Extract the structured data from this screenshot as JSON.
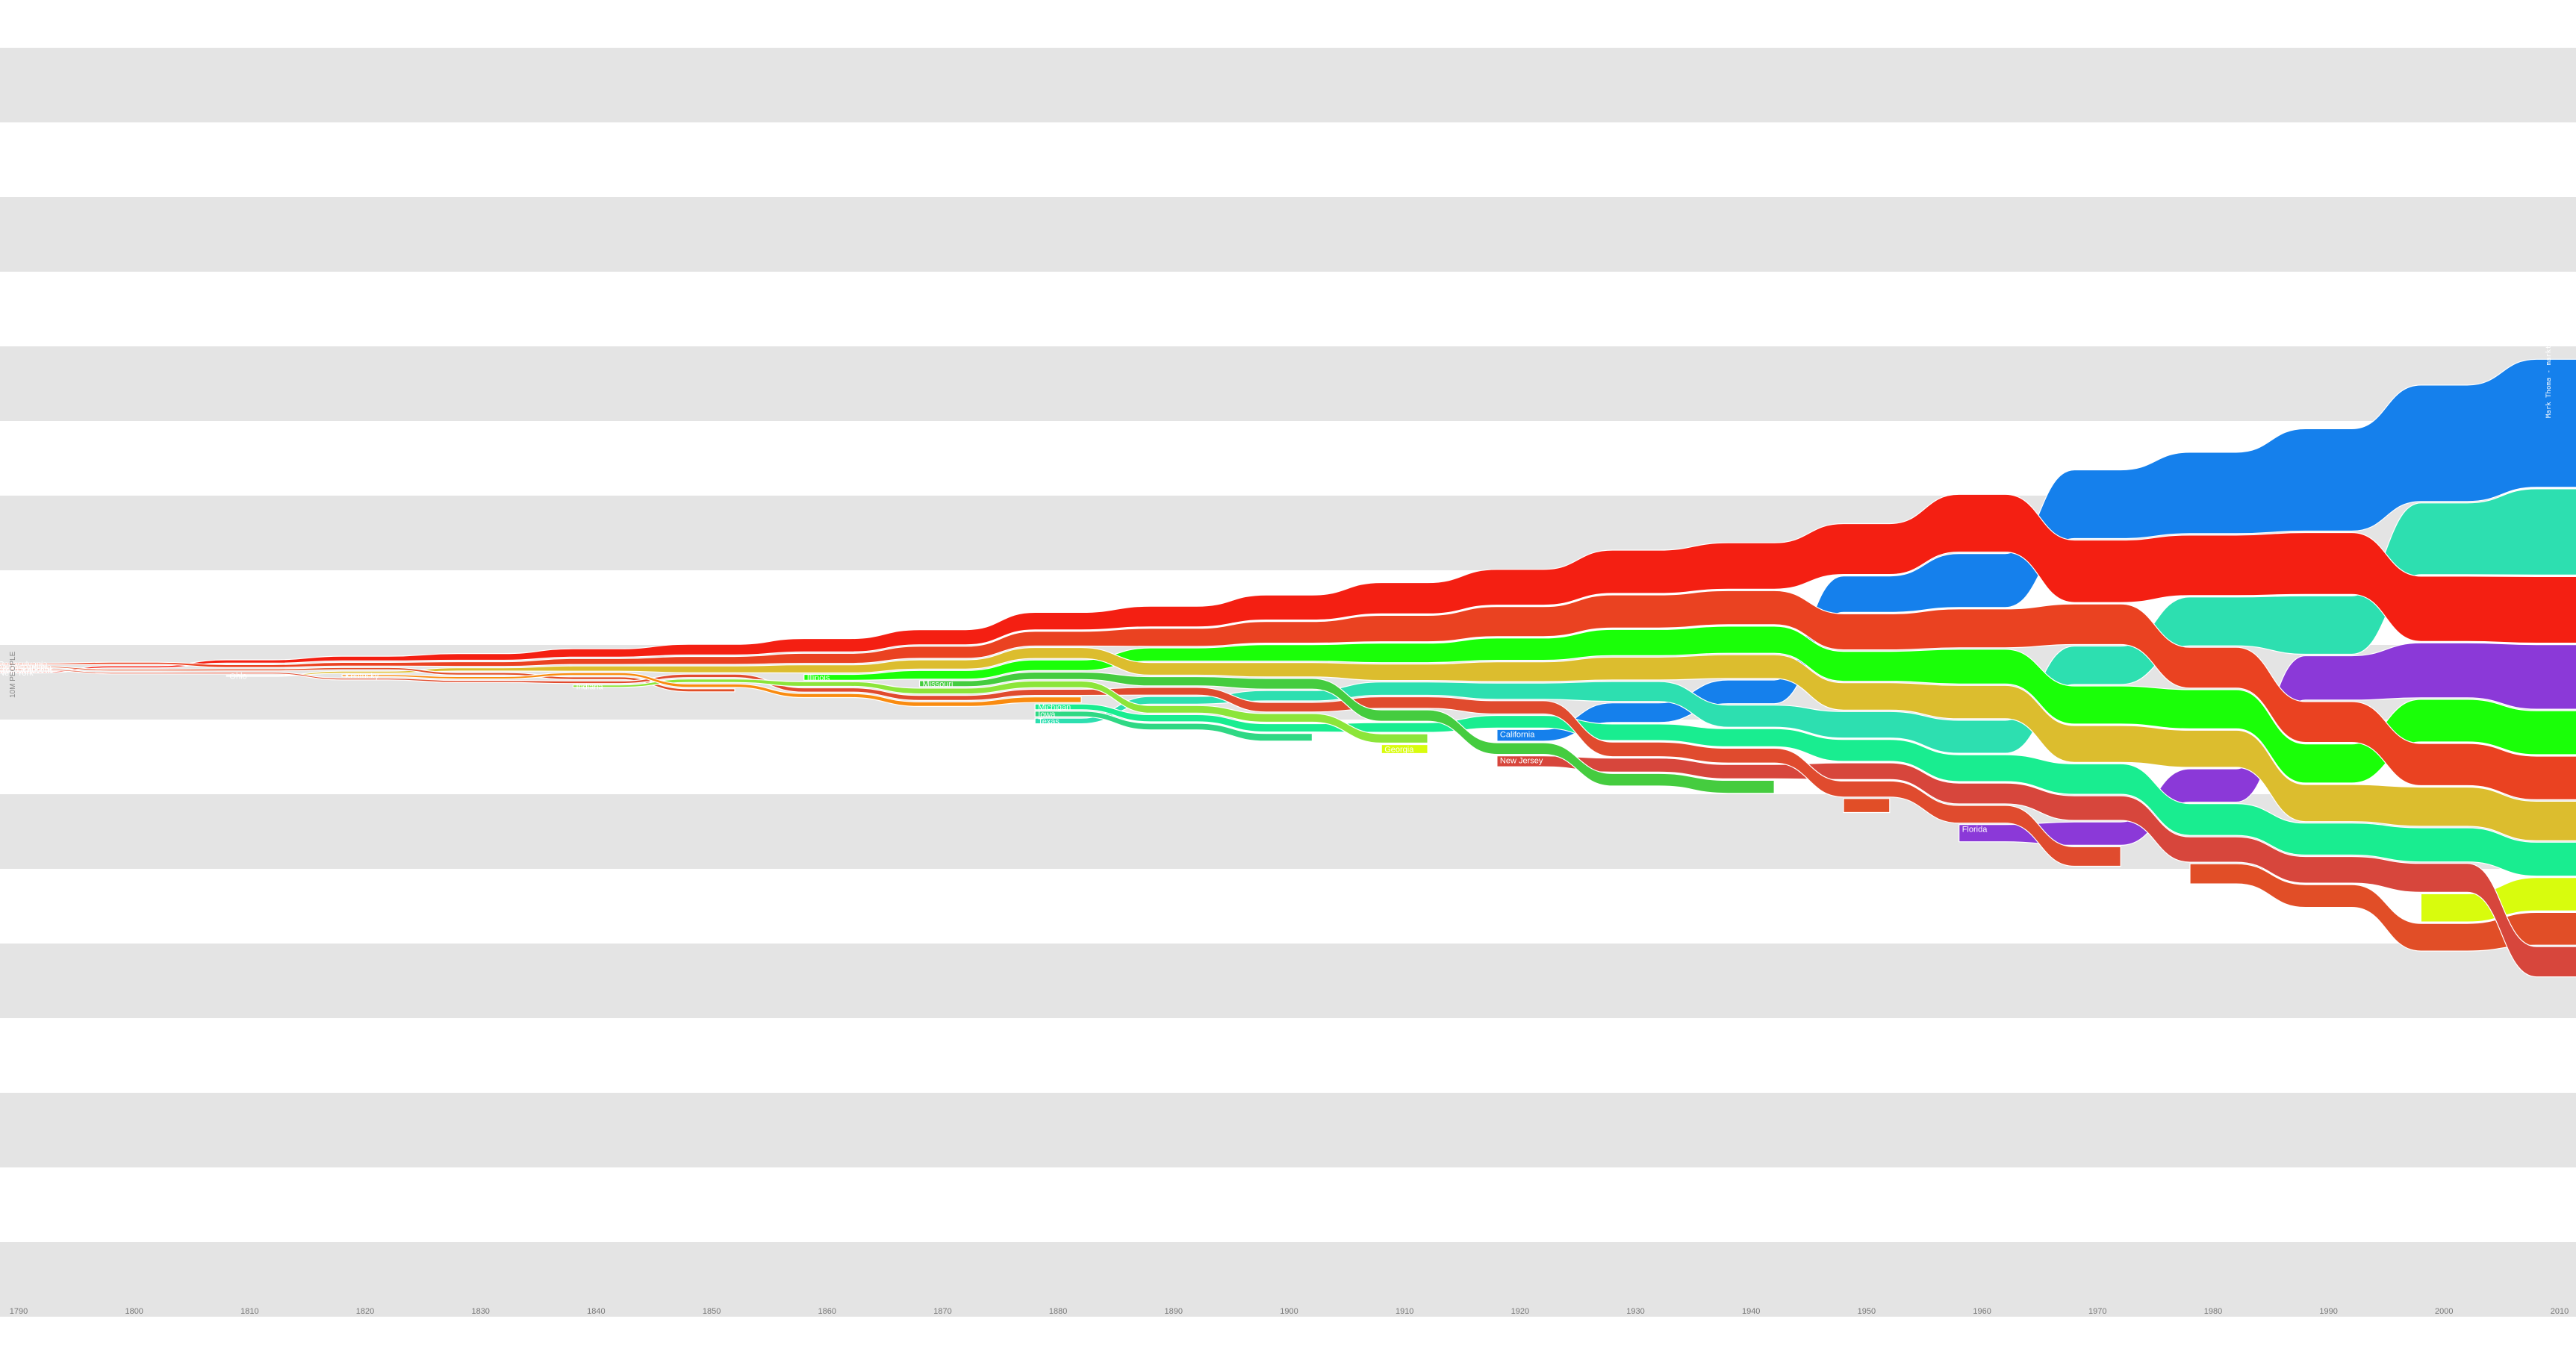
{
  "chart_data": {
    "type": "area",
    "title": "",
    "xlabel": "",
    "ylabel": "",
    "unit_label": "10M PEOPLE",
    "credit": "Mark Thoma - markthoma.com - @thoma",
    "x": [
      1790,
      1800,
      1810,
      1820,
      1830,
      1840,
      1850,
      1860,
      1870,
      1880,
      1890,
      1900,
      1910,
      1920,
      1930,
      1940,
      1950,
      1960,
      1970,
      1980,
      1990,
      2000,
      2010
    ],
    "x_ticks": [
      "1790",
      "1800",
      "1810",
      "1820",
      "1830",
      "1840",
      "1850",
      "1860",
      "1870",
      "1880",
      "1890",
      "1900",
      "1910",
      "1920",
      "1930",
      "1940",
      "1950",
      "1960",
      "1970",
      "1980",
      "1990",
      "2000",
      "2010"
    ],
    "grid": "alternating horizontal bands",
    "ranking": "states stacked by population rank each decade, largest on top",
    "series": [
      {
        "name": "California",
        "color": "#1580ec",
        "values": [
          null,
          null,
          null,
          null,
          null,
          null,
          null,
          null,
          null,
          null,
          null,
          null,
          null,
          3.4,
          5.7,
          6.9,
          10.6,
          15.7,
          20.0,
          23.7,
          29.8,
          33.9,
          37.3
        ]
      },
      {
        "name": "Texas",
        "color": "#2ddfb0",
        "values": [
          null,
          null,
          null,
          null,
          null,
          null,
          null,
          null,
          null,
          1.6,
          2.2,
          3.0,
          3.9,
          4.7,
          5.8,
          6.4,
          7.7,
          9.6,
          11.2,
          14.2,
          17.0,
          20.9,
          25.1
        ]
      },
      {
        "name": "New York",
        "color": "#f41f12",
        "values": [
          0.34,
          0.59,
          0.96,
          1.37,
          1.92,
          2.43,
          3.1,
          3.88,
          4.38,
          5.08,
          6.0,
          7.27,
          9.11,
          10.4,
          12.6,
          13.5,
          14.8,
          16.8,
          18.2,
          17.6,
          18.0,
          19.0,
          19.4
        ]
      },
      {
        "name": "Florida",
        "color": "#8b39d8",
        "values": [
          null,
          null,
          null,
          null,
          null,
          null,
          null,
          null,
          null,
          null,
          null,
          null,
          null,
          null,
          null,
          null,
          null,
          5.0,
          6.8,
          9.7,
          12.9,
          16.0,
          18.8
        ]
      },
      {
        "name": "Illinois",
        "color": "#1aff08",
        "values": [
          null,
          null,
          null,
          null,
          null,
          null,
          null,
          1.71,
          2.54,
          3.08,
          3.83,
          4.82,
          5.64,
          6.49,
          7.63,
          7.9,
          8.71,
          10.1,
          11.1,
          11.4,
          11.4,
          12.4,
          12.8
        ]
      },
      {
        "name": "Pennsylvania",
        "color": "#ea4221",
        "values": [
          0.43,
          0.6,
          0.81,
          1.05,
          1.35,
          1.72,
          2.31,
          2.91,
          3.52,
          4.28,
          5.26,
          6.3,
          7.67,
          8.72,
          9.63,
          9.9,
          10.5,
          11.3,
          11.8,
          11.9,
          11.9,
          12.3,
          12.7
        ]
      },
      {
        "name": "Ohio",
        "color": "#dcbd2e",
        "values": [
          null,
          null,
          0.23,
          0.58,
          0.94,
          1.52,
          1.98,
          2.34,
          2.67,
          3.2,
          3.67,
          4.16,
          4.77,
          5.76,
          6.65,
          6.91,
          7.95,
          9.71,
          10.7,
          10.8,
          10.8,
          11.4,
          11.5
        ]
      },
      {
        "name": "Georgia",
        "color": "#d8fc0d",
        "values": [
          null,
          null,
          null,
          null,
          null,
          null,
          null,
          null,
          null,
          null,
          null,
          null,
          2.6,
          null,
          null,
          null,
          null,
          null,
          null,
          null,
          null,
          8.2,
          9.7
        ]
      },
      {
        "name": "Michigan",
        "color": "#19ed90",
        "values": [
          null,
          null,
          null,
          null,
          null,
          null,
          null,
          null,
          null,
          1.64,
          2.09,
          2.42,
          2.81,
          3.67,
          4.84,
          5.26,
          6.37,
          7.82,
          8.88,
          9.26,
          9.3,
          9.94,
          9.88
        ]
      },
      {
        "name": "North Carolina",
        "color": "#e14e27",
        "values": [
          0.39,
          0.48,
          0.56,
          0.64,
          0.74,
          0.75,
          0.87,
          null,
          null,
          null,
          null,
          null,
          null,
          null,
          null,
          null,
          4.06,
          null,
          null,
          5.88,
          6.63,
          8.05,
          9.54
        ]
      },
      {
        "name": "New Jersey",
        "color": "#d7463c",
        "values": [
          null,
          null,
          null,
          null,
          null,
          null,
          null,
          null,
          null,
          null,
          null,
          null,
          null,
          3.16,
          4.04,
          4.16,
          4.84,
          6.07,
          7.17,
          7.36,
          7.73,
          8.41,
          8.79
        ]
      },
      {
        "name": "Massachusetts",
        "color": "#e04b2e",
        "values": [
          0.38,
          0.42,
          0.47,
          0.52,
          0.61,
          0.74,
          0.99,
          1.23,
          1.46,
          1.78,
          2.24,
          2.81,
          3.37,
          3.85,
          4.25,
          4.32,
          4.69,
          5.15,
          5.69,
          null,
          null,
          null,
          null
        ]
      },
      {
        "name": "Missouri",
        "color": "#45cc3f",
        "values": [
          null,
          null,
          null,
          null,
          null,
          null,
          null,
          null,
          1.72,
          2.17,
          2.68,
          3.11,
          3.29,
          3.4,
          3.63,
          3.78,
          null,
          null,
          null,
          null,
          null,
          null,
          null
        ]
      },
      {
        "name": "Indiana",
        "color": "#8ce53a",
        "values": [
          null,
          null,
          null,
          null,
          null,
          0.69,
          0.99,
          1.35,
          1.68,
          1.98,
          2.19,
          2.52,
          2.7,
          null,
          null,
          null,
          null,
          null,
          null,
          null,
          null,
          null,
          null
        ]
      },
      {
        "name": "Kentucky",
        "color": "#f98b10",
        "values": [
          null,
          null,
          null,
          0.56,
          0.69,
          0.78,
          0.98,
          1.16,
          1.32,
          1.65,
          null,
          null,
          null,
          null,
          null,
          null,
          null,
          null,
          null,
          null,
          null,
          null,
          null
        ]
      },
      {
        "name": "Iowa",
        "color": "#2fd884",
        "values": [
          null,
          null,
          null,
          null,
          null,
          null,
          null,
          null,
          null,
          1.62,
          1.91,
          2.23,
          null,
          null,
          null,
          null,
          null,
          null,
          null,
          null,
          null,
          null,
          null
        ]
      }
    ]
  }
}
